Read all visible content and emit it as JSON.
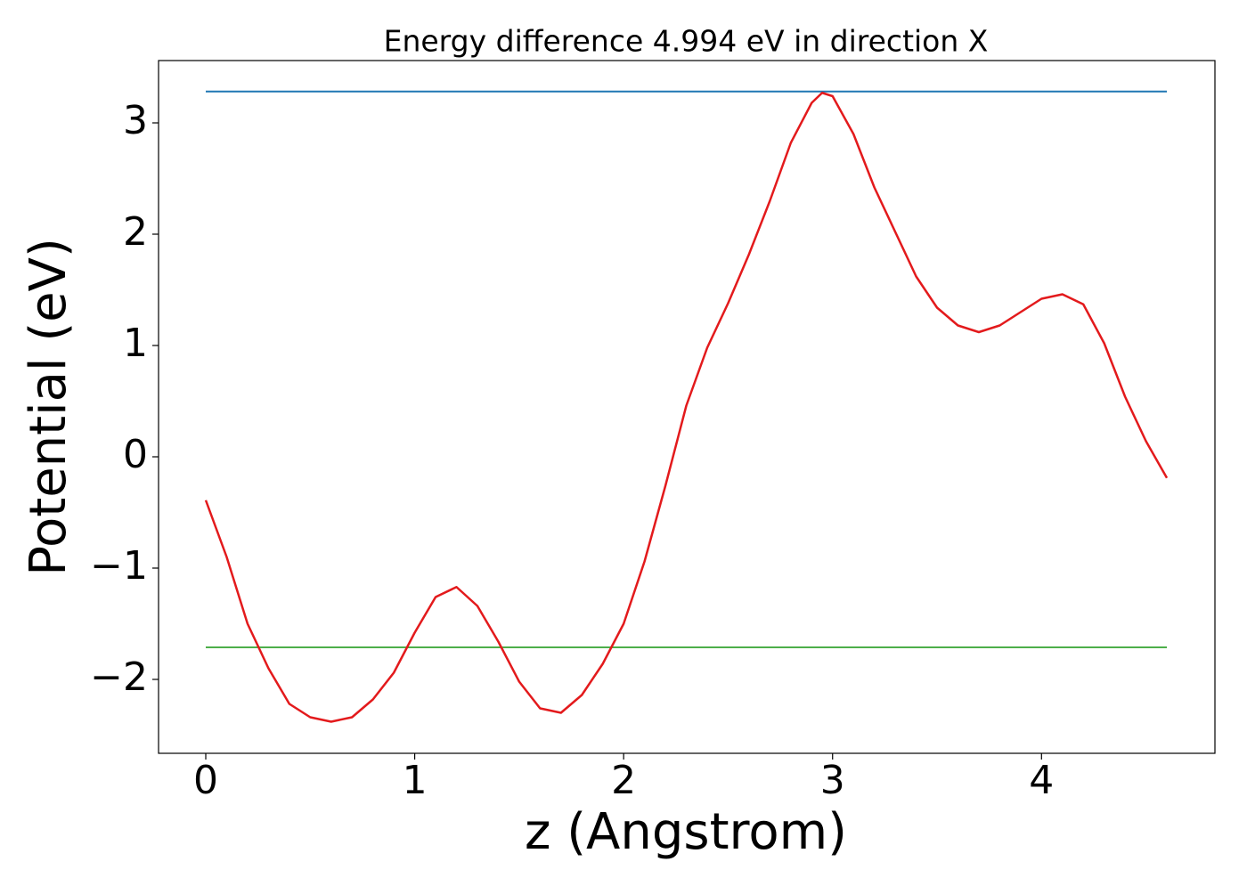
{
  "chart_data": {
    "type": "line",
    "title": "Energy difference 4.994 eV in direction X",
    "xlabel": "z (Angstrom)",
    "ylabel": "Potential (eV)",
    "x": [
      0,
      0.1,
      0.2,
      0.3,
      0.4,
      0.5,
      0.6,
      0.7,
      0.8,
      0.9,
      1.0,
      1.1,
      1.2,
      1.3,
      1.4,
      1.5,
      1.6,
      1.7,
      1.8,
      1.9,
      2.0,
      2.1,
      2.2,
      2.3,
      2.4,
      2.5,
      2.6,
      2.7,
      2.8,
      2.9,
      2.95,
      3.0,
      3.1,
      3.2,
      3.3,
      3.4,
      3.5,
      3.6,
      3.7,
      3.8,
      3.9,
      4.0,
      4.1,
      4.2,
      4.3,
      4.4,
      4.5,
      4.6
    ],
    "series": [
      {
        "color": "#e31a1c",
        "values": [
          -0.39,
          -0.9,
          -1.5,
          -1.9,
          -2.22,
          -2.34,
          -2.38,
          -2.34,
          -2.18,
          -1.94,
          -1.58,
          -1.26,
          -1.17,
          -1.34,
          -1.66,
          -2.02,
          -2.26,
          -2.3,
          -2.14,
          -1.86,
          -1.5,
          -0.94,
          -0.26,
          0.46,
          0.98,
          1.38,
          1.82,
          2.3,
          2.82,
          3.18,
          3.27,
          3.24,
          2.9,
          2.42,
          2.02,
          1.62,
          1.34,
          1.18,
          1.12,
          1.18,
          1.3,
          1.42,
          1.46,
          1.37,
          1.02,
          0.54,
          0.14,
          -0.19
        ]
      }
    ],
    "hlines": [
      {
        "value": 3.282,
        "color": "#1f77b4"
      },
      {
        "value": -1.712,
        "color": "#4daf4a"
      }
    ],
    "xlim": [
      -0.226,
      4.83
    ],
    "ylim": [
      -2.664,
      3.56
    ],
    "xticks": [
      0,
      1,
      2,
      3,
      4
    ],
    "yticks": [
      {
        "value": -2,
        "label": "−2"
      },
      {
        "value": -1,
        "label": "−1"
      },
      0,
      1,
      2,
      3
    ]
  }
}
